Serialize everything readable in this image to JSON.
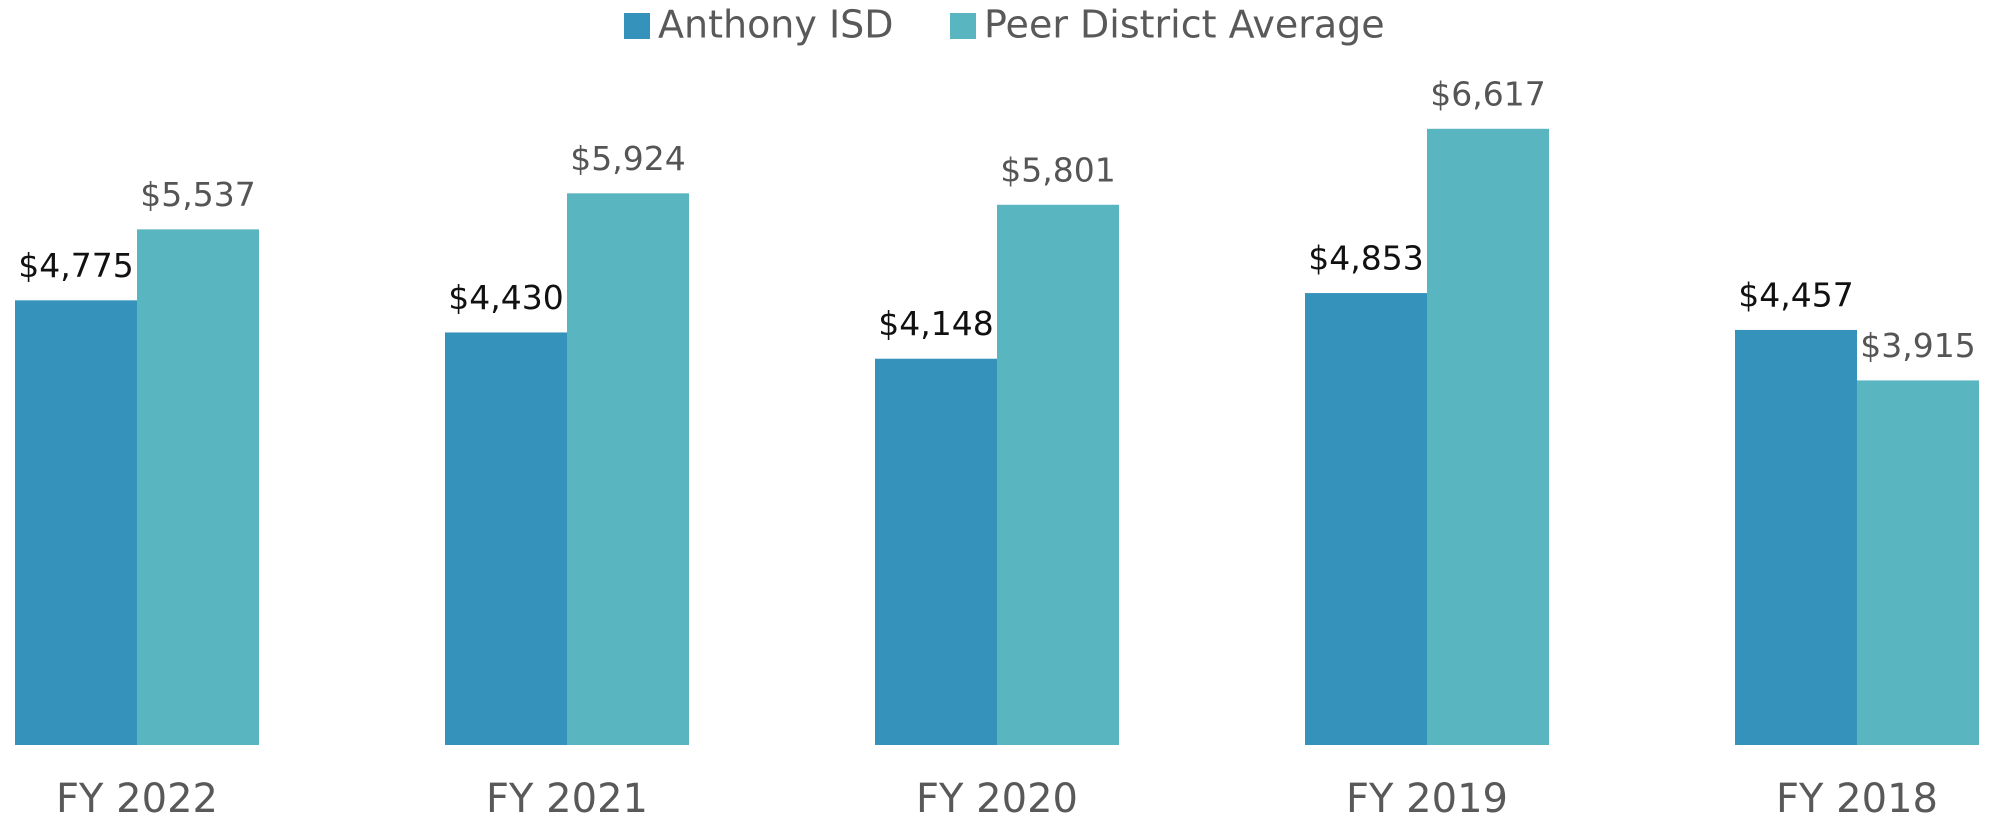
{
  "chart_data": {
    "type": "bar",
    "categories": [
      "FY 2022",
      "FY 2021",
      "FY 2020",
      "FY 2019",
      "FY 2018"
    ],
    "series": [
      {
        "name": "Anthony ISD",
        "color": "#3593bb",
        "values": [
          4775,
          4430,
          4148,
          4853,
          4457
        ],
        "value_labels": [
          "$4,775",
          "$4,430",
          "$4,148",
          "$4,853",
          "$4,457"
        ]
      },
      {
        "name": "Peer District Average",
        "color": "#59b5bf",
        "values": [
          5537,
          5924,
          5801,
          6617,
          3915
        ],
        "value_labels": [
          "$5,537",
          "$5,924",
          "$5,801",
          "$6,617",
          "$3,915"
        ]
      }
    ],
    "ylim": [
      0,
      8000
    ],
    "legend": "top"
  }
}
